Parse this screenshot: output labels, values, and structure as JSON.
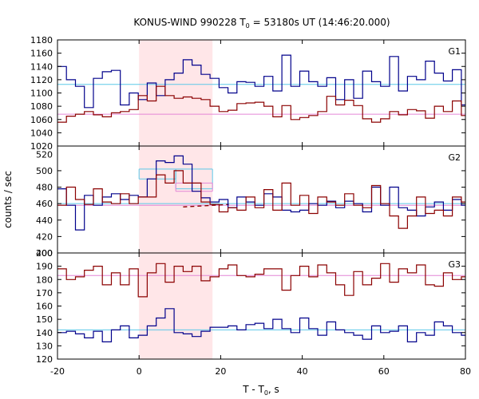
{
  "chart_data": {
    "type": "line",
    "title_main": "KONUS-WIND 990228 T",
    "title_sub": "0",
    "title_rest": " = 53180s UT (14:46:20.000)",
    "xlabel_main": "T - T",
    "xlabel_sub": "0",
    "xlabel_rest": ", s",
    "ylabel": "counts / sec",
    "xlim": [
      -20,
      80
    ],
    "xticks": [
      "-20",
      "0",
      "20",
      "40",
      "60",
      "80"
    ],
    "highlight_interval": [
      0,
      18
    ],
    "bin_edges": [
      -20,
      -17.8,
      -15.6,
      -13.4,
      -11.2,
      -9,
      -6.8,
      -4.6,
      -2.4,
      -0.2,
      2,
      4.2,
      6.4,
      8.6,
      10.8,
      13,
      15.2,
      17.4,
      19.6,
      21.8,
      24,
      26.2,
      28.4,
      30.6,
      32.8,
      35,
      37.2,
      39.4,
      41.6,
      43.8,
      46,
      48.2,
      50.4,
      52.6,
      54.8,
      57,
      59.2,
      61.4,
      63.6,
      65.8,
      68,
      70.2,
      72.4,
      74.6,
      76.8,
      79,
      80
    ],
    "panels": [
      {
        "label": "G1",
        "ylim": [
          1020,
          1180
        ],
        "yticks": [
          "1020",
          "1040",
          "1060",
          "1080",
          "1100",
          "1120",
          "1140",
          "1160",
          "1180"
        ],
        "series": [
          {
            "color": "#00008b",
            "values": [
              1140,
              1120,
              1110,
              1078,
              1122,
              1132,
              1134,
              1082,
              1100,
              1090,
              1115,
              1096,
              1120,
              1130,
              1150,
              1142,
              1128,
              1122,
              1108,
              1100,
              1117,
              1116,
              1110,
              1125,
              1103,
              1157,
              1110,
              1133,
              1117,
              1110,
              1123,
              1090,
              1120,
              1092,
              1133,
              1117,
              1110,
              1155,
              1103,
              1125,
              1120,
              1148,
              1130,
              1118,
              1135,
              1082
            ]
          },
          {
            "color": "#8b0000",
            "values": [
              1056,
              1065,
              1068,
              1072,
              1067,
              1064,
              1070,
              1072,
              1075,
              1096,
              1088,
              1110,
              1096,
              1092,
              1094,
              1092,
              1090,
              1080,
              1072,
              1074,
              1084,
              1085,
              1086,
              1080,
              1064,
              1081,
              1060,
              1063,
              1066,
              1072,
              1095,
              1082,
              1089,
              1081,
              1061,
              1056,
              1061,
              1072,
              1067,
              1075,
              1073,
              1062,
              1080,
              1072,
              1088,
              1066
            ]
          }
        ],
        "reference_lines": [
          {
            "color": "#5bc8e8",
            "value": 1113
          },
          {
            "color": "#e486d6",
            "value": 1068
          }
        ]
      },
      {
        "label": "G2",
        "ylim": [
          400,
          530
        ],
        "yticks": [
          "400",
          "420",
          "440",
          "460",
          "480",
          "500",
          "520"
        ],
        "series": [
          {
            "color": "#00008b",
            "values": [
              478,
              458,
              428,
              470,
              458,
              468,
              472,
              465,
              470,
              468,
              490,
              512,
              510,
              518,
              508,
              475,
              467,
              462,
              465,
              455,
              468,
              462,
              458,
              472,
              468,
              452,
              450,
              452,
              460,
              458,
              463,
              455,
              463,
              460,
              450,
              480,
              458,
              480,
              455,
              452,
              445,
              456,
              462,
              452,
              465,
              458
            ]
          },
          {
            "color": "#8b0000",
            "values": [
              458,
              480,
              465,
              459,
              478,
              462,
              460,
              472,
              460,
              468,
              468,
              495,
              485,
              500,
              485,
              485,
              462,
              459,
              450,
              455,
              452,
              468,
              455,
              477,
              452,
              485,
              458,
              470,
              448,
              468,
              462,
              458,
              472,
              458,
              455,
              482,
              460,
              445,
              430,
              445,
              468,
              448,
              452,
              445,
              468,
              462
            ]
          }
        ],
        "reference_lines": [
          {
            "color": "#5bc8e8",
            "value": 460
          },
          {
            "color": "#e486d6",
            "value": 458
          }
        ],
        "box_lines": [
          {
            "color": "#5bc8e8",
            "x": [
              0,
              9
            ],
            "values": [
              502,
              490
            ]
          },
          {
            "color": "#5bc8e8",
            "x": [
              9,
              18
            ],
            "values": [
              502,
              478
            ]
          },
          {
            "color": "#e486d6",
            "x": [
              9,
              18
            ],
            "values": [
              485,
              475
            ]
          }
        ],
        "dashed_line": {
          "color": "#8b0000",
          "x": [
            10.8,
            22
          ],
          "values": [
            456,
            459
          ]
        }
      },
      {
        "label": "G3",
        "ylim": [
          120,
          200
        ],
        "yticks": [
          "120",
          "130",
          "140",
          "150",
          "160",
          "170",
          "180",
          "190",
          "200"
        ],
        "series": [
          {
            "color": "#00008b",
            "values": [
              140,
              141,
              139,
              136,
              141,
              133,
              142,
              145,
              136,
              138,
              145,
              151,
              158,
              140,
              139,
              137,
              141,
              144,
              144,
              145,
              142,
              146,
              147,
              143,
              150,
              143,
              140,
              151,
              143,
              138,
              148,
              142,
              140,
              138,
              135,
              145,
              140,
              141,
              145,
              133,
              140,
              138,
              148,
              145,
              140,
              138
            ]
          },
          {
            "color": "#8b0000",
            "values": [
              188,
              180,
              182,
              187,
              190,
              176,
              185,
              176,
              188,
              167,
              185,
              192,
              178,
              190,
              186,
              190,
              179,
              182,
              188,
              191,
              183,
              182,
              184,
              188,
              188,
              172,
              183,
              190,
              182,
              191,
              185,
              176,
              168,
              186,
              176,
              181,
              192,
              178,
              188,
              185,
              191,
              176,
              175,
              185,
              180,
              182
            ]
          }
        ],
        "reference_lines": [
          {
            "color": "#5bc8e8",
            "value": 142
          },
          {
            "color": "#e486d6",
            "value": 183
          }
        ]
      }
    ]
  }
}
